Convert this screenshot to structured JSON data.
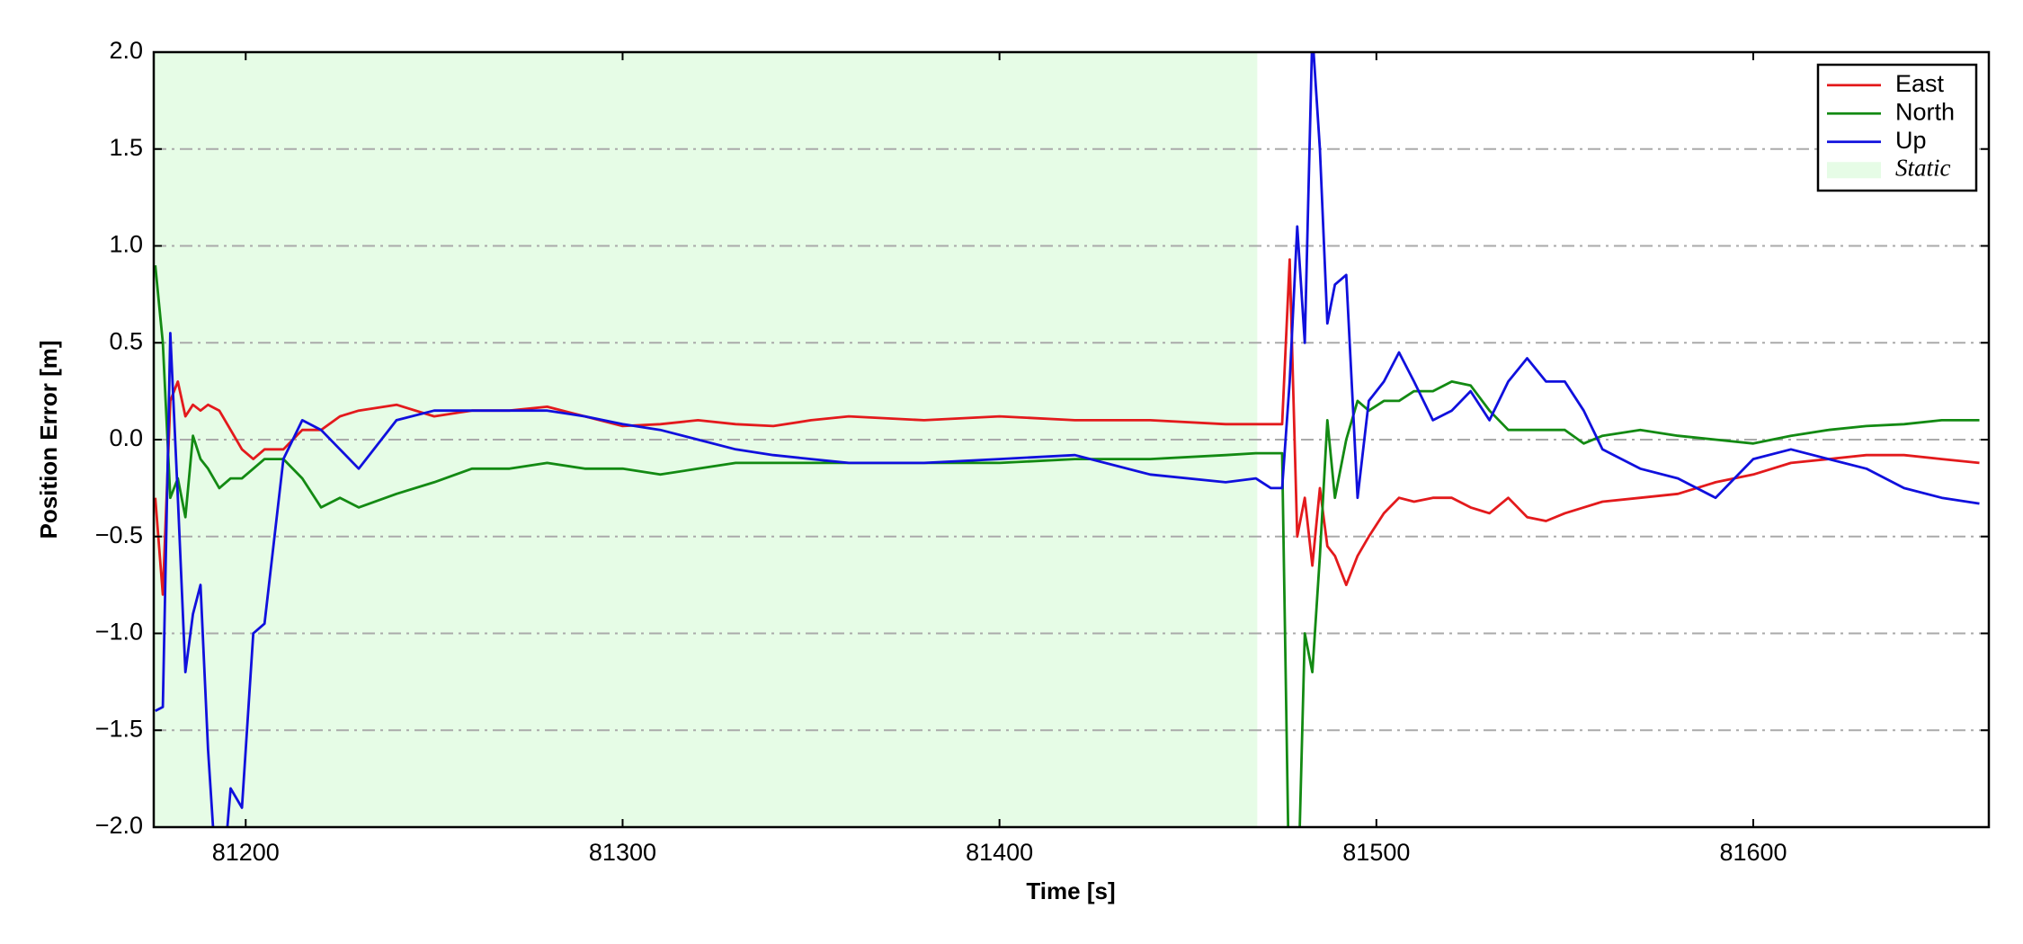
{
  "chart_data": {
    "type": "line",
    "xlabel": "Time [s]",
    "ylabel": "Position Error [m]",
    "xlim": [
      81175.6,
      81662.5
    ],
    "ylim": [
      -2,
      2
    ],
    "xticks": [
      81200,
      81300,
      81400,
      81500,
      81600
    ],
    "yticks": [
      {
        "value": -2,
        "label": "−2.0"
      },
      {
        "value": -1.5,
        "label": "−1.5"
      },
      {
        "value": -1,
        "label": "−1.0"
      },
      {
        "value": -0.5,
        "label": "−0.5"
      },
      {
        "value": 0,
        "label": "0.0"
      },
      {
        "value": 0.5,
        "label": "0.5"
      },
      {
        "value": 1,
        "label": "1.0"
      },
      {
        "value": 1.5,
        "label": "1.5"
      },
      {
        "value": 2,
        "label": "2.0"
      }
    ],
    "grid": true,
    "legend": "upper right",
    "spans": [
      {
        "name": "Static",
        "color": "#e6fce6",
        "x": [
          81175.6,
          81468.4
        ]
      }
    ],
    "x": [
      81176,
      81178,
      81180,
      81182,
      81184,
      81186,
      81188,
      81190,
      81193,
      81196,
      81199,
      81202,
      81205,
      81210,
      81215,
      81220,
      81225,
      81230,
      81240,
      81250,
      81260,
      81270,
      81280,
      81290,
      81300,
      81310,
      81320,
      81330,
      81340,
      81350,
      81360,
      81380,
      81400,
      81420,
      81440,
      81460,
      81468,
      81472,
      81475,
      81477,
      81479,
      81481,
      81483,
      81485,
      81487,
      81489,
      81492,
      81495,
      81498,
      81502,
      81506,
      81510,
      81515,
      81520,
      81525,
      81530,
      81535,
      81540,
      81545,
      81550,
      81555,
      81560,
      81570,
      81580,
      81590,
      81600,
      81610,
      81620,
      81630,
      81640,
      81650,
      81660
    ],
    "series": [
      {
        "name": "East",
        "color": "#e31a1c",
        "values": [
          -0.3,
          -0.8,
          0.2,
          0.3,
          0.12,
          0.18,
          0.15,
          0.18,
          0.15,
          0.05,
          -0.05,
          -0.1,
          -0.05,
          -0.05,
          0.05,
          0.05,
          0.12,
          0.15,
          0.18,
          0.12,
          0.15,
          0.15,
          0.17,
          0.12,
          0.07,
          0.08,
          0.1,
          0.08,
          0.07,
          0.1,
          0.12,
          0.1,
          0.12,
          0.1,
          0.1,
          0.08,
          0.08,
          0.08,
          0.08,
          0.93,
          -0.5,
          -0.3,
          -0.65,
          -0.25,
          -0.55,
          -0.6,
          -0.75,
          -0.6,
          -0.5,
          -0.38,
          -0.3,
          -0.32,
          -0.3,
          -0.3,
          -0.35,
          -0.38,
          -0.3,
          -0.4,
          -0.42,
          -0.38,
          -0.35,
          -0.32,
          -0.3,
          -0.28,
          -0.22,
          -0.18,
          -0.12,
          -0.1,
          -0.08,
          -0.08,
          -0.1,
          -0.12
        ]
      },
      {
        "name": "North",
        "color": "#138a13",
        "values": [
          0.9,
          0.5,
          -0.3,
          -0.2,
          -0.4,
          0.02,
          -0.1,
          -0.15,
          -0.25,
          -0.2,
          -0.2,
          -0.15,
          -0.1,
          -0.1,
          -0.2,
          -0.35,
          -0.3,
          -0.35,
          -0.28,
          -0.22,
          -0.15,
          -0.15,
          -0.12,
          -0.15,
          -0.15,
          -0.18,
          -0.15,
          -0.12,
          -0.12,
          -0.12,
          -0.12,
          -0.12,
          -0.12,
          -0.1,
          -0.1,
          -0.08,
          -0.07,
          -0.07,
          -0.07,
          -2.5,
          -2.5,
          -1.0,
          -1.2,
          -0.6,
          0.1,
          -0.3,
          0.0,
          0.2,
          0.15,
          0.2,
          0.2,
          0.25,
          0.25,
          0.3,
          0.28,
          0.15,
          0.05,
          0.05,
          0.05,
          0.05,
          -0.02,
          0.02,
          0.05,
          0.02,
          0.0,
          -0.02,
          0.02,
          0.05,
          0.07,
          0.08,
          0.1,
          0.1
        ]
      },
      {
        "name": "Up",
        "color": "#1010dd",
        "values": [
          -1.4,
          -1.38,
          0.55,
          -0.3,
          -1.2,
          -0.9,
          -0.75,
          -1.6,
          -2.5,
          -1.8,
          -1.9,
          -1.0,
          -0.95,
          -0.1,
          0.1,
          0.05,
          -0.05,
          -0.15,
          0.1,
          0.15,
          0.15,
          0.15,
          0.15,
          0.12,
          0.08,
          0.05,
          0.0,
          -0.05,
          -0.08,
          -0.1,
          -0.12,
          -0.12,
          -0.1,
          -0.08,
          -0.18,
          -0.22,
          -0.2,
          -0.25,
          -0.25,
          0.3,
          1.1,
          0.5,
          2.1,
          1.5,
          0.6,
          0.8,
          0.85,
          -0.3,
          0.2,
          0.3,
          0.45,
          0.3,
          0.1,
          0.15,
          0.25,
          0.1,
          0.3,
          0.42,
          0.3,
          0.3,
          0.15,
          -0.05,
          -0.15,
          -0.2,
          -0.3,
          -0.1,
          -0.05,
          -0.1,
          -0.15,
          -0.25,
          -0.3,
          -0.33
        ]
      }
    ]
  }
}
